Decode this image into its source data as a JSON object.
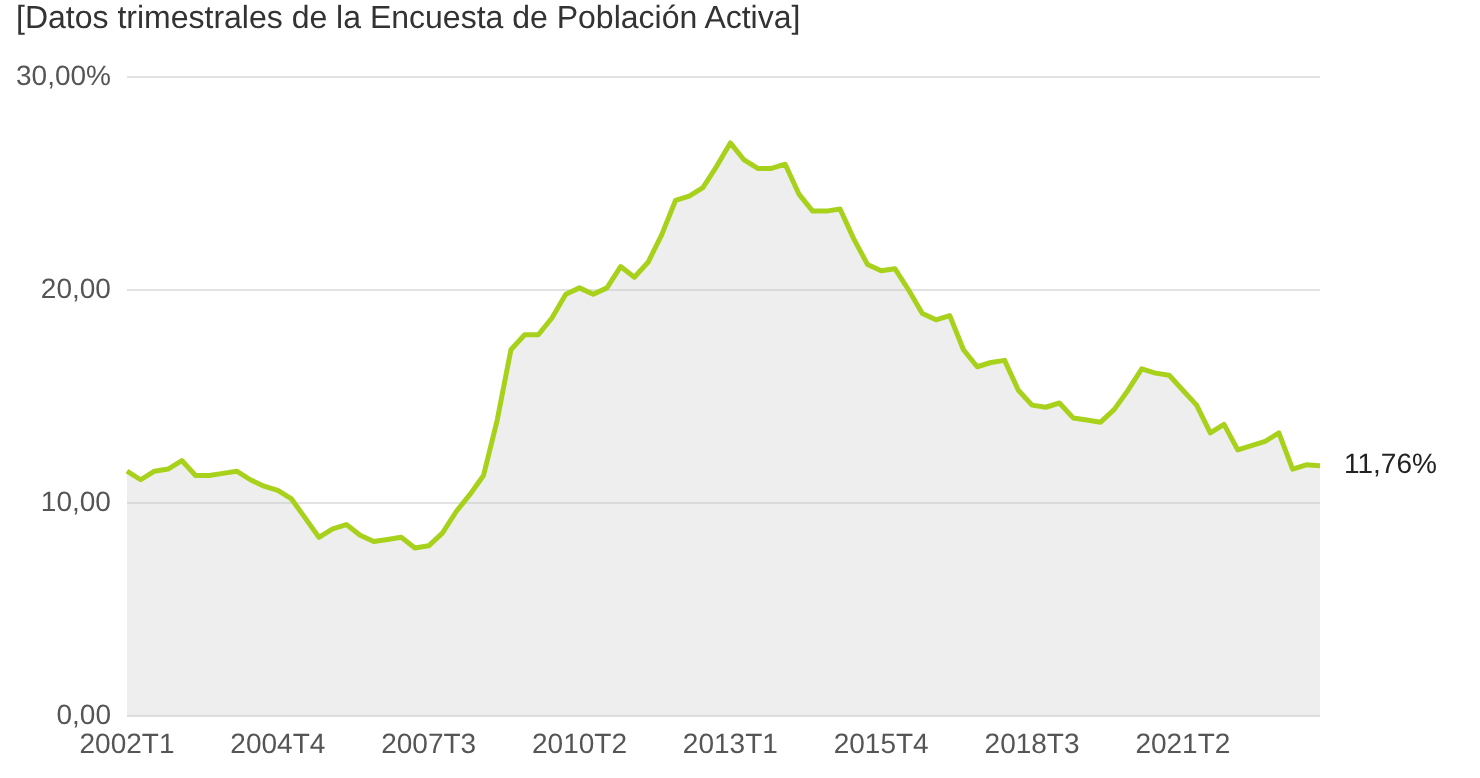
{
  "chart_data": {
    "type": "area",
    "subtitle": "[Datos trimestrales de la Encuesta de Población Activa]",
    "categories": [
      "2002T1",
      null,
      null,
      null,
      null,
      null,
      null,
      null,
      null,
      null,
      null,
      "2004T4",
      null,
      null,
      null,
      null,
      null,
      null,
      null,
      null,
      null,
      null,
      "2007T3",
      null,
      null,
      null,
      null,
      null,
      null,
      null,
      null,
      null,
      null,
      "2010T2",
      null,
      null,
      null,
      null,
      null,
      null,
      null,
      null,
      null,
      null,
      "2013T1",
      null,
      null,
      null,
      null,
      null,
      null,
      null,
      null,
      null,
      null,
      "2015T4",
      null,
      null,
      null,
      null,
      null,
      null,
      null,
      null,
      null,
      null,
      "2018T3",
      null,
      null,
      null,
      null,
      null,
      null,
      null,
      null,
      null,
      null,
      "2021T2",
      null,
      null,
      null,
      null,
      null,
      null,
      null,
      null,
      null,
      null
    ],
    "series": [
      {
        "color": "#a8d11c",
        "values": [
          11.5,
          11.1,
          11.5,
          11.6,
          12.0,
          11.3,
          11.3,
          11.4,
          11.5,
          11.1,
          10.8,
          10.6,
          10.2,
          9.3,
          8.4,
          8.8,
          9.0,
          8.5,
          8.2,
          8.3,
          8.4,
          7.9,
          8.0,
          8.6,
          9.6,
          10.4,
          11.3,
          13.9,
          17.2,
          17.9,
          17.9,
          18.7,
          19.8,
          20.1,
          19.8,
          20.1,
          21.1,
          20.6,
          21.3,
          22.6,
          24.2,
          24.4,
          24.8,
          25.8,
          26.9,
          26.1,
          25.7,
          25.7,
          25.9,
          24.5,
          23.7,
          23.7,
          23.8,
          22.4,
          21.2,
          20.9,
          21.0,
          20.0,
          18.9,
          18.6,
          18.8,
          17.2,
          16.4,
          16.6,
          16.7,
          15.3,
          14.6,
          14.5,
          14.7,
          14.0,
          13.9,
          13.8,
          14.4,
          15.3,
          16.3,
          16.1,
          16.0,
          15.3,
          14.6,
          13.3,
          13.7,
          12.5,
          12.7,
          12.9,
          13.3,
          11.6,
          11.8,
          11.76
        ],
        "value_labels": [
          null,
          null,
          null,
          null,
          null,
          null,
          null,
          null,
          null,
          null,
          null,
          null,
          null,
          null,
          null,
          null,
          null,
          null,
          null,
          null,
          null,
          null,
          null,
          null,
          null,
          null,
          null,
          null,
          null,
          null,
          null,
          null,
          null,
          null,
          null,
          null,
          null,
          null,
          null,
          null,
          null,
          null,
          null,
          null,
          null,
          null,
          null,
          null,
          null,
          null,
          null,
          null,
          null,
          null,
          null,
          null,
          null,
          null,
          null,
          null,
          null,
          null,
          null,
          null,
          null,
          null,
          null,
          null,
          null,
          null,
          null,
          null,
          null,
          null,
          null,
          null,
          null,
          null,
          null,
          null,
          null,
          null,
          null,
          null,
          null,
          null,
          null,
          "11,76%"
        ]
      }
    ],
    "ylim": [
      0,
      30
    ],
    "yticks": [
      {
        "value": 0,
        "label": "0,00"
      },
      {
        "value": 10,
        "label": "10,00"
      },
      {
        "value": 20,
        "label": "20,00"
      },
      {
        "value": 30,
        "label": "30,00%"
      }
    ],
    "grid": "y",
    "legend": false,
    "marker": "none",
    "line_style": "solid"
  }
}
